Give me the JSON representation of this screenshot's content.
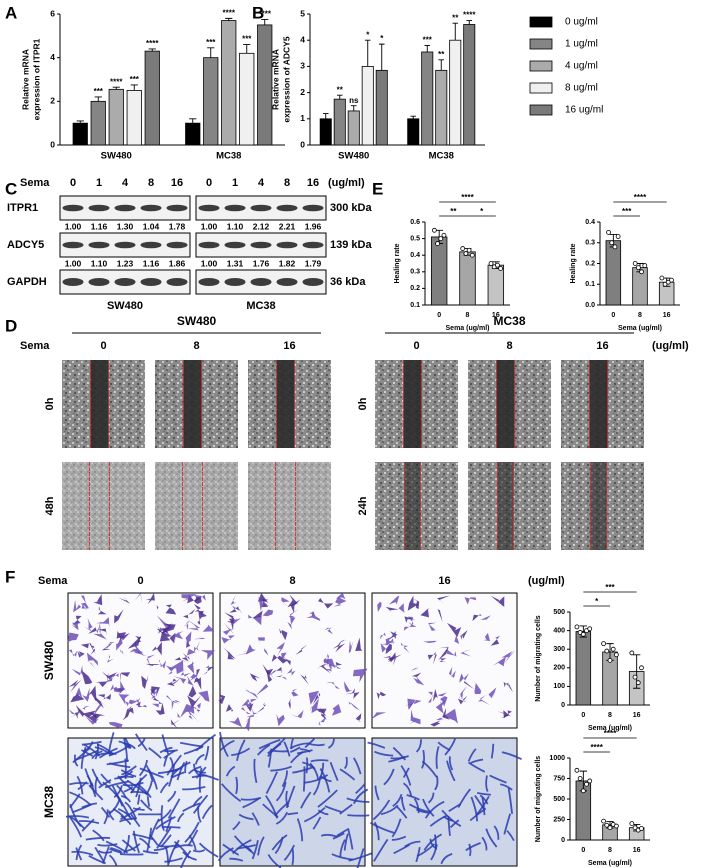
{
  "chart_data": [
    {
      "type": "bar",
      "ylabel": [
        "Relative mRNA",
        "expression of ITPR1"
      ],
      "categories": [
        "SW480",
        "MC38"
      ],
      "ylim": [
        0,
        6
      ],
      "yticks": [
        0,
        2,
        4,
        6
      ],
      "series": [
        {
          "name": "0 ug/ml",
          "color": "#000000",
          "values": [
            1.0,
            1.0
          ],
          "errors": [
            0.1,
            0.2
          ],
          "sig": [
            null,
            null
          ]
        },
        {
          "name": "1 ug/ml",
          "color": "#858585",
          "values": [
            2.0,
            4.0
          ],
          "errors": [
            0.2,
            0.45
          ],
          "sig": [
            "***",
            "***"
          ]
        },
        {
          "name": "4 ug/ml",
          "color": "#ababab",
          "values": [
            2.55,
            5.7
          ],
          "errors": [
            0.1,
            0.1
          ],
          "sig": [
            "****",
            "****"
          ]
        },
        {
          "name": "8 ug/ml",
          "color": "#f0f0f0",
          "values": [
            2.5,
            4.2
          ],
          "errors": [
            0.25,
            0.4
          ],
          "sig": [
            "***",
            "***"
          ]
        },
        {
          "name": "16 ug/ml",
          "color": "#7a7a7a",
          "values": [
            4.3,
            5.5
          ],
          "errors": [
            0.1,
            0.25
          ],
          "sig": [
            "****",
            "****"
          ]
        }
      ]
    },
    {
      "type": "bar",
      "ylabel": [
        "Relative mRNA",
        "expression of ADCY5"
      ],
      "categories": [
        "SW480",
        "MC38"
      ],
      "ylim": [
        0,
        5
      ],
      "yticks": [
        0,
        1,
        2,
        3,
        4,
        5
      ],
      "series": [
        {
          "color": "#000000",
          "values": [
            1.0,
            1.0
          ],
          "errors": [
            0.2,
            0.1
          ],
          "sig": [
            null,
            null
          ]
        },
        {
          "color": "#858585",
          "values": [
            1.75,
            3.55
          ],
          "errors": [
            0.15,
            0.25
          ],
          "sig": [
            "**",
            "***"
          ]
        },
        {
          "color": "#ababab",
          "values": [
            1.3,
            2.85
          ],
          "errors": [
            0.2,
            0.4
          ],
          "sig": [
            "ns",
            "**"
          ]
        },
        {
          "color": "#f0f0f0",
          "values": [
            3.0,
            4.0
          ],
          "errors": [
            1.0,
            0.65
          ],
          "sig": [
            "*",
            "**"
          ]
        },
        {
          "color": "#7a7a7a",
          "values": [
            2.85,
            4.6
          ],
          "errors": [
            1.0,
            0.15
          ],
          "sig": [
            "*",
            "****"
          ]
        }
      ]
    },
    {
      "type": "bar",
      "ylabel": [
        "Healing rate"
      ],
      "xlabel": "Sema (ug/ml)",
      "categories": [
        "0",
        "8",
        "16"
      ],
      "ylim": [
        0.1,
        0.6
      ],
      "yticks": [
        0.1,
        0.2,
        0.3,
        0.4,
        0.5,
        0.6
      ],
      "values": [
        0.51,
        0.42,
        0.34
      ],
      "errors": [
        0.04,
        0.02,
        0.02
      ],
      "colors": [
        "#7f7f7f",
        "#a6a6a6",
        "#c4c4c4"
      ],
      "points": [
        [
          0.55,
          0.47,
          0.5,
          0.52
        ],
        [
          0.44,
          0.41,
          0.43,
          0.4
        ],
        [
          0.35,
          0.33,
          0.34,
          0.32
        ]
      ],
      "brackets": [
        "****",
        "**",
        "*"
      ]
    },
    {
      "type": "bar",
      "ylabel": [
        "Healing rate"
      ],
      "xlabel": "Sema (ug/ml)",
      "categories": [
        "0",
        "8",
        "16"
      ],
      "ylim": [
        0,
        0.4
      ],
      "yticks": [
        {
          "value": 0,
          "label": "0.0"
        },
        0.1,
        0.2,
        0.3,
        0.4
      ],
      "values": [
        0.31,
        0.18,
        0.11
      ],
      "errors": [
        0.03,
        0.02,
        0.02
      ],
      "colors": [
        "#7f7f7f",
        "#a6a6a6",
        "#c4c4c4"
      ],
      "points": [
        [
          0.35,
          0.3,
          0.28,
          0.33
        ],
        [
          0.2,
          0.18,
          0.16,
          0.19
        ],
        [
          0.13,
          0.1,
          0.11,
          0.12
        ]
      ],
      "brackets": [
        "****",
        "***"
      ]
    },
    {
      "type": "bar",
      "ylabel": [
        "Number of migrating cells"
      ],
      "xlabel": "Sema (ug/ml)",
      "categories": [
        "0",
        "8",
        "16"
      ],
      "ylim": [
        0,
        500
      ],
      "yticks": [
        0,
        100,
        200,
        300,
        400,
        500
      ],
      "values": [
        395,
        285,
        180
      ],
      "errors": [
        30,
        45,
        90
      ],
      "colors": [
        "#7f7f7f",
        "#a6a6a6",
        "#c4c4c4"
      ],
      "points": [
        [
          420,
          390,
          380,
          400,
          410
        ],
        [
          330,
          290,
          240,
          300,
          270
        ],
        [
          280,
          150,
          120,
          200
        ]
      ],
      "brackets": [
        "***",
        "*"
      ]
    },
    {
      "type": "bar",
      "ylabel": [
        "Number of migrating cells"
      ],
      "xlabel": "Sema (ug/ml)",
      "categories": [
        "0",
        "8",
        "16"
      ],
      "ylim": [
        0,
        1000
      ],
      "yticks": [
        0,
        250,
        500,
        750,
        1000
      ],
      "values": [
        720,
        185,
        150
      ],
      "errors": [
        120,
        40,
        40
      ],
      "colors": [
        "#7f7f7f",
        "#a6a6a6",
        "#c4c4c4"
      ],
      "points": [
        [
          850,
          750,
          600,
          680,
          720
        ],
        [
          230,
          180,
          150,
          190,
          170
        ],
        [
          200,
          150,
          120,
          140
        ]
      ],
      "brackets": [
        "****",
        "****"
      ]
    }
  ],
  "figure": {
    "panel_labels": [
      "A",
      "B",
      "C",
      "D",
      "E",
      "F"
    ],
    "blot": {
      "sema": "Sema",
      "doses": [
        "0",
        "1",
        "4",
        "8",
        "16"
      ],
      "unit": "(ug/ml)",
      "lines": [
        "SW480",
        "MC38"
      ],
      "rows": [
        {
          "name": "ITPR1",
          "kda": "300 kDa",
          "quant": [
            [
              "1.00",
              "1.16",
              "1.30",
              "1.04",
              "1.78"
            ],
            [
              "1.00",
              "1.10",
              "2.12",
              "2.21",
              "1.96"
            ]
          ]
        },
        {
          "name": "ADCY5",
          "kda": "139 kDa",
          "quant": [
            [
              "1.00",
              "1.10",
              "1.23",
              "1.16",
              "1.86"
            ],
            [
              "1.00",
              "1.31",
              "1.76",
              "1.82",
              "1.79"
            ]
          ]
        },
        {
          "name": "GAPDH",
          "kda": "36 kDa"
        }
      ]
    },
    "scratch": {
      "sema": "Sema",
      "doses": [
        "0",
        "8",
        "16"
      ],
      "unit": "(ug/ml)",
      "lines": [
        {
          "name": "SW480",
          "times": [
            "0h",
            "48h"
          ]
        },
        {
          "name": "MC38",
          "times": [
            "0h",
            "24h"
          ]
        }
      ]
    },
    "transwell": {
      "sema": "Sema",
      "doses": [
        "0",
        "8",
        "16"
      ],
      "unit": "(ug/ml)",
      "lines": [
        "SW480",
        "MC38"
      ]
    }
  }
}
